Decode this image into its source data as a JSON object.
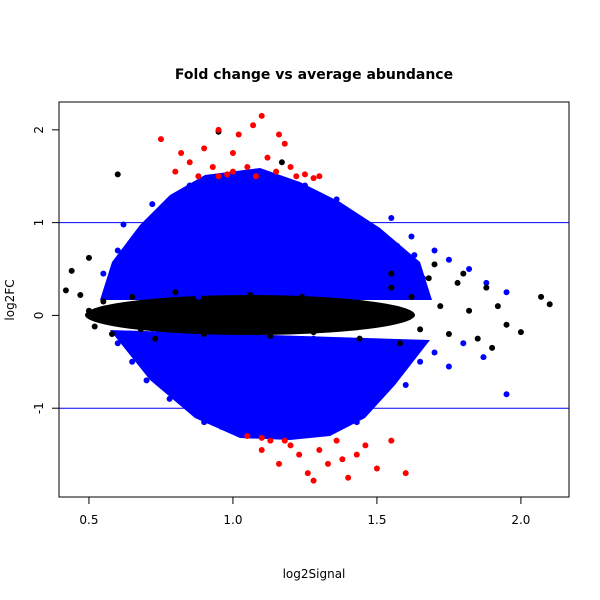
{
  "chart_data": {
    "type": "scatter",
    "title": "Fold change vs average abundance",
    "xlabel": "log2Signal",
    "ylabel": "log2FC",
    "xlim": [
      0.396,
      2.167
    ],
    "ylim": [
      -1.957,
      2.3
    ],
    "xticks": [
      0.5,
      1.0,
      1.5,
      2.0
    ],
    "xtick_labels": [
      "0.5",
      "1.0",
      "1.5",
      "2.0"
    ],
    "yticks": [
      -1,
      0,
      1,
      2
    ],
    "ytick_labels": [
      "-1",
      "0",
      "1",
      "2"
    ],
    "grid": false,
    "hlines": [
      1,
      -1
    ],
    "hline_color": "#0000ff",
    "series": [
      {
        "color": "#0000ff",
        "points": [
          [
            0.55,
            0.45
          ],
          [
            0.6,
            0.7
          ],
          [
            0.65,
            0.55
          ],
          [
            0.7,
            0.9
          ],
          [
            0.72,
            1.2
          ],
          [
            0.75,
            0.4
          ],
          [
            0.78,
            1.05
          ],
          [
            0.8,
            0.7
          ],
          [
            0.82,
            1.3
          ],
          [
            0.85,
            0.5
          ],
          [
            0.87,
            0.95
          ],
          [
            0.9,
            1.25
          ],
          [
            0.92,
            0.35
          ],
          [
            0.95,
            0.8
          ],
          [
            0.97,
            1.1
          ],
          [
            1.0,
            0.6
          ],
          [
            1.02,
            1.35
          ],
          [
            1.05,
            0.9
          ],
          [
            1.08,
            0.45
          ],
          [
            1.1,
            1.2
          ],
          [
            1.12,
            0.7
          ],
          [
            1.15,
            1.0
          ],
          [
            1.18,
            0.55
          ],
          [
            1.2,
            1.3
          ],
          [
            1.23,
            0.8
          ],
          [
            1.26,
            1.1
          ],
          [
            1.3,
            0.5
          ],
          [
            1.33,
            0.95
          ],
          [
            1.36,
            1.25
          ],
          [
            1.4,
            0.7
          ],
          [
            1.43,
            1.0
          ],
          [
            1.46,
            0.4
          ],
          [
            1.5,
            0.85
          ],
          [
            1.53,
            0.6
          ],
          [
            1.57,
            0.75
          ],
          [
            1.6,
            0.5
          ],
          [
            1.63,
            0.65
          ],
          [
            1.66,
            0.4
          ],
          [
            0.68,
            0.3
          ],
          [
            0.88,
            0.2
          ],
          [
            1.0,
            1.45
          ],
          [
            0.85,
            1.4
          ],
          [
            1.25,
            1.4
          ],
          [
            1.38,
            0.3
          ],
          [
            0.62,
            0.98
          ],
          [
            0.58,
            0.3
          ],
          [
            0.77,
            0.6
          ],
          [
            0.93,
            1.05
          ],
          [
            1.07,
            1.15
          ],
          [
            1.15,
            0.35
          ],
          [
            0.6,
            -0.3
          ],
          [
            0.65,
            -0.5
          ],
          [
            0.7,
            -0.7
          ],
          [
            0.75,
            -0.45
          ],
          [
            0.78,
            -0.9
          ],
          [
            0.82,
            -0.6
          ],
          [
            0.85,
            -1.0
          ],
          [
            0.88,
            -0.35
          ],
          [
            0.9,
            -1.15
          ],
          [
            0.93,
            -0.75
          ],
          [
            0.96,
            -1.2
          ],
          [
            1.0,
            -0.5
          ],
          [
            1.02,
            -1.0
          ],
          [
            1.05,
            -0.8
          ],
          [
            1.08,
            -1.25
          ],
          [
            1.1,
            -0.4
          ],
          [
            1.12,
            -0.95
          ],
          [
            1.15,
            -1.2
          ],
          [
            1.18,
            -0.65
          ],
          [
            1.2,
            -1.1
          ],
          [
            1.23,
            -0.3
          ],
          [
            1.26,
            -0.85
          ],
          [
            1.3,
            -1.2
          ],
          [
            1.33,
            -0.55
          ],
          [
            1.36,
            -1.0
          ],
          [
            1.4,
            -0.75
          ],
          [
            1.43,
            -1.15
          ],
          [
            1.46,
            -0.45
          ],
          [
            1.5,
            -0.9
          ],
          [
            1.53,
            -0.6
          ],
          [
            1.57,
            -0.35
          ],
          [
            1.6,
            -0.75
          ],
          [
            1.65,
            -0.5
          ],
          [
            1.7,
            -0.4
          ],
          [
            1.75,
            -0.55
          ],
          [
            1.8,
            -0.3
          ],
          [
            1.87,
            -0.45
          ],
          [
            1.95,
            -0.85
          ],
          [
            0.72,
            -0.2
          ],
          [
            0.98,
            -0.3
          ],
          [
            1.28,
            -0.25
          ],
          [
            1.7,
            0.7
          ],
          [
            1.75,
            0.6
          ],
          [
            1.82,
            0.5
          ],
          [
            1.88,
            0.35
          ],
          [
            1.95,
            0.25
          ],
          [
            1.62,
            0.85
          ],
          [
            1.55,
            1.05
          ]
        ]
      },
      {
        "color": "#000000",
        "points": [
          [
            0.42,
            0.27
          ],
          [
            0.44,
            0.48
          ],
          [
            0.47,
            0.22
          ],
          [
            0.5,
            0.05
          ],
          [
            0.52,
            -0.12
          ],
          [
            0.55,
            0.15
          ],
          [
            0.58,
            -0.2
          ],
          [
            0.6,
            0.1
          ],
          [
            0.62,
            -0.05
          ],
          [
            0.65,
            0.2
          ],
          [
            0.68,
            -0.15
          ],
          [
            0.7,
            0.05
          ],
          [
            0.73,
            -0.25
          ],
          [
            0.75,
            0.15
          ],
          [
            0.78,
            -0.02
          ],
          [
            0.8,
            0.25
          ],
          [
            0.83,
            -0.1
          ],
          [
            0.86,
            0.05
          ],
          [
            0.9,
            -0.2
          ],
          [
            0.93,
            0.18
          ],
          [
            0.96,
            -0.05
          ],
          [
            1.0,
            0.1
          ],
          [
            1.03,
            -0.15
          ],
          [
            1.06,
            0.22
          ],
          [
            1.1,
            0.0
          ],
          [
            1.13,
            -0.22
          ],
          [
            1.16,
            0.12
          ],
          [
            1.2,
            -0.08
          ],
          [
            1.24,
            0.2
          ],
          [
            1.28,
            -0.18
          ],
          [
            1.32,
            0.05
          ],
          [
            1.36,
            -0.1
          ],
          [
            1.4,
            0.15
          ],
          [
            1.44,
            -0.25
          ],
          [
            1.48,
            0.08
          ],
          [
            1.52,
            -0.05
          ],
          [
            1.55,
            0.3
          ],
          [
            1.58,
            -0.3
          ],
          [
            1.62,
            0.2
          ],
          [
            1.65,
            -0.15
          ],
          [
            1.68,
            0.4
          ],
          [
            1.72,
            0.1
          ],
          [
            1.75,
            -0.2
          ],
          [
            1.78,
            0.35
          ],
          [
            1.82,
            0.05
          ],
          [
            1.85,
            -0.25
          ],
          [
            1.88,
            0.3
          ],
          [
            1.92,
            0.1
          ],
          [
            1.95,
            -0.1
          ],
          [
            2.0,
            -0.18
          ],
          [
            2.07,
            0.2
          ],
          [
            2.1,
            0.12
          ],
          [
            1.55,
            0.45
          ],
          [
            1.7,
            0.55
          ],
          [
            0.95,
            1.98
          ],
          [
            1.17,
            1.65
          ],
          [
            0.6,
            1.52
          ],
          [
            0.5,
            0.62
          ],
          [
            1.8,
            0.45
          ],
          [
            1.9,
            -0.35
          ]
        ]
      },
      {
        "color": "#ff0000",
        "points": [
          [
            0.75,
            1.9
          ],
          [
            0.8,
            1.55
          ],
          [
            0.85,
            1.65
          ],
          [
            0.88,
            1.5
          ],
          [
            0.9,
            1.8
          ],
          [
            0.93,
            1.6
          ],
          [
            0.95,
            2.0
          ],
          [
            0.98,
            1.52
          ],
          [
            1.0,
            1.75
          ],
          [
            1.02,
            1.95
          ],
          [
            1.05,
            1.6
          ],
          [
            1.07,
            2.05
          ],
          [
            1.08,
            1.5
          ],
          [
            1.1,
            2.15
          ],
          [
            1.12,
            1.7
          ],
          [
            1.15,
            1.55
          ],
          [
            1.18,
            1.85
          ],
          [
            1.2,
            1.6
          ],
          [
            1.22,
            1.5
          ],
          [
            1.25,
            1.52
          ],
          [
            1.28,
            1.48
          ],
          [
            1.3,
            1.5
          ],
          [
            0.82,
            1.75
          ],
          [
            1.16,
            1.95
          ],
          [
            0.95,
            1.5
          ],
          [
            1.0,
            1.55
          ],
          [
            1.05,
            -1.3
          ],
          [
            1.1,
            -1.45
          ],
          [
            1.13,
            -1.35
          ],
          [
            1.16,
            -1.6
          ],
          [
            1.2,
            -1.4
          ],
          [
            1.23,
            -1.5
          ],
          [
            1.26,
            -1.7
          ],
          [
            1.3,
            -1.45
          ],
          [
            1.33,
            -1.6
          ],
          [
            1.36,
            -1.35
          ],
          [
            1.4,
            -1.75
          ],
          [
            1.43,
            -1.5
          ],
          [
            1.46,
            -1.4
          ],
          [
            1.5,
            -1.65
          ],
          [
            1.55,
            -1.35
          ],
          [
            1.6,
            -1.7
          ],
          [
            1.1,
            -1.32
          ],
          [
            1.28,
            -1.78
          ],
          [
            1.38,
            -1.55
          ],
          [
            1.18,
            -1.35
          ]
        ]
      }
    ]
  }
}
